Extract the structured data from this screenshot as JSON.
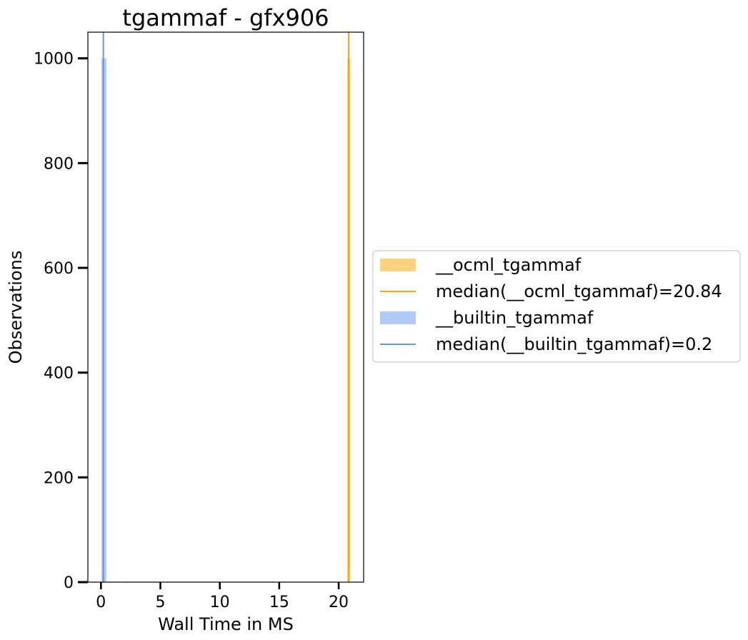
{
  "chart_data": {
    "type": "histogram",
    "title": "tgammaf - gfx906",
    "xlabel": "Wall Time in MS",
    "ylabel": "Observations",
    "xlim": [
      -1.1,
      22.1
    ],
    "ylim": [
      0,
      1050
    ],
    "xticks": [
      0,
      5,
      10,
      15,
      20
    ],
    "yticks": [
      0,
      200,
      400,
      600,
      800,
      1000
    ],
    "series": [
      {
        "name": "__ocml_tgammaf",
        "kind": "bars",
        "color": "#ffa500",
        "alpha": 0.5,
        "bins": [
          {
            "x0": 20.72,
            "x1": 20.98,
            "value": 1000
          }
        ]
      },
      {
        "name": "__builtin_tgammaf",
        "kind": "bars",
        "color": "#6495ed",
        "alpha": 0.5,
        "bins": [
          {
            "x0": 0.05,
            "x1": 0.45,
            "value": 1000
          },
          {
            "x0": 1.9,
            "x1": 2.1,
            "value": 1
          }
        ]
      }
    ],
    "medians": [
      {
        "name": "median(__ocml_tgammaf)=20.84",
        "x": 20.84,
        "color": "#ffa500"
      },
      {
        "name": "median(__builtin_tgammaf)=0.2",
        "x": 0.2,
        "color": "#6495ed"
      }
    ],
    "legend": {
      "placement": "center-left outside",
      "entries": [
        {
          "label": "__ocml_tgammaf",
          "kind": "patch",
          "color": "#ffa500"
        },
        {
          "label": "median(__ocml_tgammaf)=20.84",
          "kind": "line",
          "color": "#ffa500"
        },
        {
          "label": "__builtin_tgammaf",
          "kind": "patch",
          "color": "#6495ed"
        },
        {
          "label": "median(__builtin_tgammaf)=0.2",
          "kind": "line",
          "color": "#6495ed"
        }
      ]
    },
    "grid": false
  }
}
